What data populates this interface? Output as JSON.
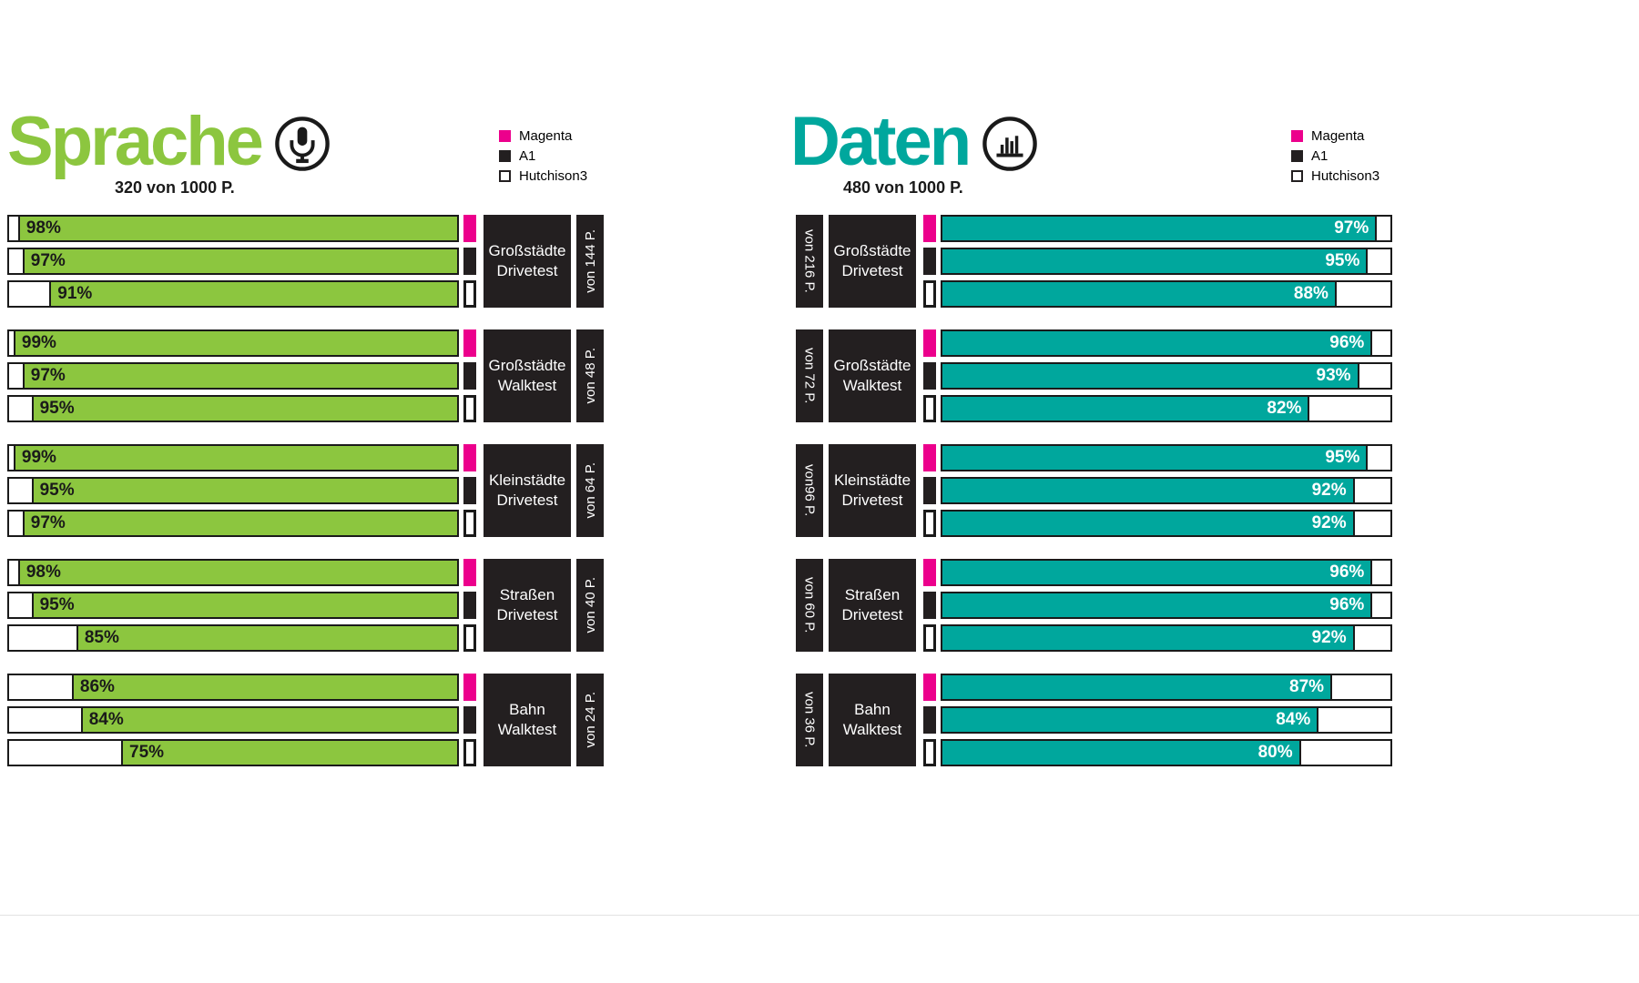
{
  "page": {
    "background": "#FFFFFF"
  },
  "marker_colors": [
    "#EC008C",
    "#231F20",
    "#FFFFFF"
  ],
  "dark_color": "#231F20",
  "chart_data": [
    {
      "id": "sprache",
      "type": "bar",
      "orientation": "horizontal",
      "bars_anchored": "right",
      "title": "Sprache",
      "subtitle": "320 von 1000 P.",
      "icon": "microphone-icon",
      "title_color": "#8CC63F",
      "bar_color": "#8CC63F",
      "value_text_color": "#1A1A1A",
      "unit": "%",
      "xlim": [
        0,
        100
      ],
      "legend_position": "top-right",
      "legend": [
        {
          "label": "Magenta",
          "color": "#EC008C"
        },
        {
          "label": "A1",
          "color": "#231F20"
        },
        {
          "label": "Hutchison3",
          "color": "#FFFFFF"
        }
      ],
      "series_names": [
        "Magenta",
        "A1",
        "Hutchison3"
      ],
      "groups": [
        {
          "name": "Großstädte Drivetest",
          "name_lines": [
            "Großstädte",
            "Drivetest"
          ],
          "points_label": "von 144 P.",
          "values": [
            98,
            97,
            91
          ]
        },
        {
          "name": "Großstädte Walktest",
          "name_lines": [
            "Großstädte",
            "Walktest"
          ],
          "points_label": "von 48 P.",
          "values": [
            99,
            97,
            95
          ]
        },
        {
          "name": "Kleinstädte Drivetest",
          "name_lines": [
            "Kleinstädte",
            "Drivetest"
          ],
          "points_label": "von 64 P.",
          "values": [
            99,
            95,
            97
          ]
        },
        {
          "name": "Straßen Drivetest",
          "name_lines": [
            "Straßen",
            "Drivetest"
          ],
          "points_label": "von 40 P.",
          "values": [
            98,
            95,
            85
          ]
        },
        {
          "name": "Bahn Walktest",
          "name_lines": [
            "Bahn",
            "Walktest"
          ],
          "points_label": "von 24 P.",
          "values": [
            86,
            84,
            75
          ]
        }
      ]
    },
    {
      "id": "daten",
      "type": "bar",
      "orientation": "horizontal",
      "bars_anchored": "left",
      "title": "Daten",
      "subtitle": "480 von 1000 P.",
      "icon": "bar-chart-icon",
      "title_color": "#00A79D",
      "bar_color": "#00A79D",
      "value_text_color": "#FFFFFF",
      "unit": "%",
      "xlim": [
        0,
        100
      ],
      "legend_position": "top-right",
      "legend": [
        {
          "label": "Magenta",
          "color": "#EC008C"
        },
        {
          "label": "A1",
          "color": "#231F20"
        },
        {
          "label": "Hutchison3",
          "color": "#FFFFFF"
        }
      ],
      "series_names": [
        "Magenta",
        "A1",
        "Hutchison3"
      ],
      "groups": [
        {
          "name": "Großstädte Drivetest",
          "name_lines": [
            "Großstädte",
            "Drivetest"
          ],
          "points_label": "von 216 P.",
          "values": [
            97,
            95,
            88
          ]
        },
        {
          "name": "Großstädte Walktest",
          "name_lines": [
            "Großstädte",
            "Walktest"
          ],
          "points_label": "von 72 P.",
          "values": [
            96,
            93,
            82
          ]
        },
        {
          "name": "Kleinstädte Drivetest",
          "name_lines": [
            "Kleinstädte",
            "Drivetest"
          ],
          "points_label": "von96 P.",
          "values": [
            95,
            92,
            92
          ]
        },
        {
          "name": "Straßen Drivetest",
          "name_lines": [
            "Straßen",
            "Drivetest"
          ],
          "points_label": "von 60 P.",
          "values": [
            96,
            96,
            92
          ]
        },
        {
          "name": "Bahn Walktest",
          "name_lines": [
            "Bahn",
            "Walktest"
          ],
          "points_label": "von 36 P.",
          "values": [
            87,
            84,
            80
          ]
        }
      ]
    }
  ]
}
